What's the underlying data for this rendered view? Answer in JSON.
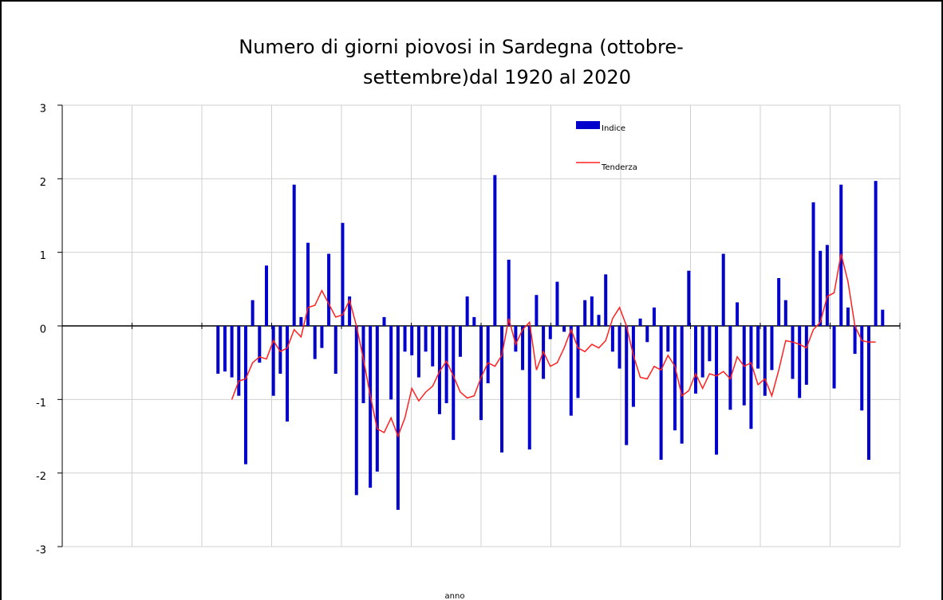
{
  "chart_data": {
    "type": "bar",
    "title": [
      "Numero  di  giorni  piovosi  in  Sardegna  (ottobre-",
      "settembre)dal 1920 al 2020"
    ],
    "x_label": "anno",
    "categories": [
      null,
      null,
      null,
      null,
      null,
      null,
      null,
      null,
      null,
      null,
      null,
      null,
      null,
      null,
      null,
      null,
      null,
      null,
      null,
      null,
      null,
      null,
      null,
      null,
      null,
      null,
      null,
      null,
      null,
      null,
      null,
      null,
      null,
      null,
      null,
      null,
      null,
      null,
      null,
      null,
      null,
      null,
      null,
      null,
      null,
      null,
      null,
      null,
      null,
      null,
      null,
      null,
      null,
      null,
      null,
      null,
      null,
      null,
      null,
      null,
      null,
      null,
      null,
      null,
      null,
      null,
      null,
      null,
      null,
      null,
      null,
      null,
      null,
      null,
      null,
      null,
      null,
      null,
      null,
      null,
      null,
      null,
      null,
      null,
      null,
      null,
      null,
      null,
      null,
      null,
      null,
      null,
      null,
      null,
      null,
      null,
      null,
      null,
      null,
      null,
      null,
      null,
      null,
      null,
      null,
      null,
      null,
      null,
      null,
      null,
      null,
      null,
      null,
      null,
      null,
      null,
      null,
      null,
      null,
      null,
      null
    ],
    "series": [
      {
        "name": "Indice",
        "color": "#0000cc",
        "values": [
          null,
          null,
          null,
          null,
          null,
          null,
          null,
          null,
          null,
          null,
          null,
          null,
          null,
          null,
          null,
          null,
          null,
          null,
          null,
          null,
          null,
          null,
          -0.65,
          -0.62,
          -0.7,
          -0.95,
          -1.88,
          0.35,
          -0.5,
          0.82,
          -0.95,
          -0.65,
          -1.3,
          1.92,
          0.12,
          1.13,
          -0.45,
          -0.3,
          0.98,
          -0.65,
          1.4,
          0.4,
          -2.3,
          -1.05,
          -2.2,
          -1.98,
          0.12,
          -1.0,
          -2.5,
          -0.35,
          -0.4,
          -0.7,
          -0.35,
          -0.55,
          -1.2,
          -1.05,
          -1.55,
          -0.42,
          0.4,
          0.12,
          -1.28,
          -0.78,
          2.05,
          -1.72,
          0.9,
          -0.35,
          -0.6,
          -1.68,
          0.42,
          -0.72,
          -0.18,
          0.6,
          -0.08,
          -1.22,
          -0.98,
          0.35,
          0.4,
          0.15,
          0.7,
          -0.35,
          -0.58,
          -1.62,
          -1.1,
          0.1,
          -0.22,
          0.25,
          -1.82,
          -0.35,
          -1.42,
          -1.6,
          0.75,
          -0.92,
          -0.7,
          -0.48,
          -1.75,
          0.98,
          -1.14,
          0.32,
          -1.08,
          -1.4,
          -0.58,
          -0.95,
          -0.6,
          0.65,
          0.35,
          -0.72,
          -0.98,
          -0.8,
          1.68,
          1.02,
          1.1,
          -0.85,
          1.92,
          0.25,
          -0.38,
          -1.15,
          -1.82,
          1.97,
          0.22,
          null,
          null
        ]
      },
      {
        "name": "Tenderza",
        "color": "#ff2020",
        "kind": "line",
        "values": [
          null,
          null,
          null,
          null,
          null,
          null,
          null,
          null,
          null,
          null,
          null,
          null,
          null,
          null,
          null,
          null,
          null,
          null,
          null,
          null,
          null,
          null,
          null,
          null,
          -1.0,
          -0.75,
          -0.72,
          -0.5,
          -0.42,
          -0.45,
          -0.2,
          -0.35,
          -0.3,
          -0.05,
          -0.15,
          0.25,
          0.28,
          0.48,
          0.3,
          0.12,
          0.15,
          0.35,
          0.0,
          -0.45,
          -0.95,
          -1.4,
          -1.45,
          -1.25,
          -1.5,
          -1.25,
          -0.85,
          -1.02,
          -0.9,
          -0.82,
          -0.62,
          -0.48,
          -0.68,
          -0.9,
          -0.98,
          -0.95,
          -0.7,
          -0.5,
          -0.55,
          -0.4,
          0.1,
          -0.25,
          -0.05,
          0.05,
          -0.6,
          -0.35,
          -0.55,
          -0.5,
          -0.3,
          -0.05,
          -0.3,
          -0.35,
          -0.25,
          -0.3,
          -0.2,
          0.1,
          0.25,
          0.0,
          -0.4,
          -0.7,
          -0.72,
          -0.55,
          -0.6,
          -0.4,
          -0.55,
          -0.95,
          -0.88,
          -0.65,
          -0.85,
          -0.65,
          -0.68,
          -0.62,
          -0.72,
          -0.42,
          -0.55,
          -0.5,
          -0.8,
          -0.72,
          -0.95,
          -0.6,
          -0.2,
          -0.22,
          -0.25,
          -0.3,
          -0.05,
          0.05,
          0.4,
          0.45,
          0.98,
          0.6,
          0.0,
          -0.2,
          -0.22,
          -0.22,
          null,
          null,
          null
        ]
      }
    ],
    "ylim": [
      -3,
      3
    ],
    "yticks": [
      -3,
      -2,
      -1,
      0,
      1,
      2,
      3
    ],
    "grid": true,
    "legend": "top-right"
  }
}
